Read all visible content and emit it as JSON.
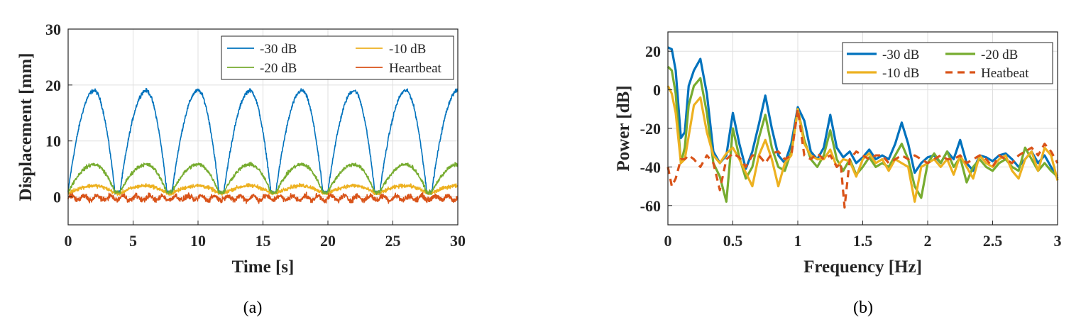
{
  "chart_data": [
    {
      "type": "line",
      "panel_label": "a",
      "xlabel": "Time [s]",
      "ylabel": "Displacement [mm]",
      "xlim": [
        0,
        30
      ],
      "ylim": [
        -5,
        30
      ],
      "xticks": [
        0,
        5,
        10,
        15,
        20,
        25,
        30
      ],
      "yticks": [
        0,
        10,
        20,
        30
      ],
      "legend_position": "top-right",
      "series": [
        {
          "name": "-30 dB",
          "color": "#0072BD",
          "kind": "breathing",
          "period_s": 4.0,
          "peak_mm": 19,
          "base_mm": 0.8,
          "noise_mm": 0.5
        },
        {
          "name": "-10 dB",
          "color": "#EDB120",
          "kind": "breathing",
          "period_s": 4.0,
          "peak_mm": 2.0,
          "base_mm": 0.6,
          "noise_mm": 0.5
        },
        {
          "name": "-20 dB",
          "color": "#77AC30",
          "kind": "breathing",
          "period_s": 4.0,
          "peak_mm": 5.8,
          "base_mm": 0.8,
          "noise_mm": 0.5
        },
        {
          "name": "Heartbeat",
          "color": "#D95319",
          "kind": "heartbeat",
          "period_s": 1.0,
          "peak_mm": 0.4,
          "base_mm": -0.2,
          "noise_mm": 0.6
        }
      ]
    },
    {
      "type": "line",
      "panel_label": "b",
      "xlabel": "Frequency [Hz]",
      "ylabel": "Power [dB]",
      "xlim": [
        0,
        3
      ],
      "ylim": [
        -70,
        30
      ],
      "xticks": [
        0,
        0.5,
        1,
        1.5,
        2,
        2.5,
        3
      ],
      "xtick_labels": [
        "0",
        "0.5",
        "1",
        "1.5",
        "2",
        "2.5",
        "3"
      ],
      "yticks": [
        -60,
        -40,
        -20,
        0,
        20
      ],
      "legend_position": "top-right",
      "series": [
        {
          "name": "-30 dB",
          "color": "#0072BD",
          "dash": "solid",
          "x": [
            0,
            0.03,
            0.06,
            0.1,
            0.13,
            0.16,
            0.2,
            0.25,
            0.3,
            0.35,
            0.4,
            0.45,
            0.5,
            0.55,
            0.6,
            0.65,
            0.7,
            0.75,
            0.8,
            0.85,
            0.9,
            0.95,
            1.0,
            1.05,
            1.1,
            1.15,
            1.2,
            1.25,
            1.3,
            1.35,
            1.4,
            1.45,
            1.5,
            1.55,
            1.6,
            1.65,
            1.7,
            1.75,
            1.8,
            1.85,
            1.9,
            1.95,
            2.0,
            2.05,
            2.1,
            2.15,
            2.2,
            2.25,
            2.3,
            2.35,
            2.4,
            2.45,
            2.5,
            2.55,
            2.6,
            2.65,
            2.7,
            2.75,
            2.8,
            2.85,
            2.9,
            2.95,
            3.0
          ],
          "y": [
            22,
            21,
            10,
            -25,
            -22,
            2,
            10,
            16,
            -2,
            -32,
            -38,
            -34,
            -12,
            -28,
            -41,
            -32,
            -18,
            -3,
            -20,
            -34,
            -38,
            -28,
            -9,
            -16,
            -32,
            -36,
            -30,
            -13,
            -30,
            -35,
            -32,
            -38,
            -35,
            -31,
            -36,
            -34,
            -36,
            -28,
            -17,
            -28,
            -43,
            -38,
            -35,
            -34,
            -38,
            -32,
            -36,
            -26,
            -38,
            -42,
            -34,
            -35,
            -37,
            -34,
            -33,
            -36,
            -40,
            -36,
            -32,
            -38,
            -34,
            -40,
            -46
          ]
        },
        {
          "name": "-20 dB",
          "color": "#77AC30",
          "dash": "solid",
          "x": [
            0,
            0.03,
            0.06,
            0.1,
            0.13,
            0.16,
            0.2,
            0.25,
            0.3,
            0.35,
            0.4,
            0.45,
            0.5,
            0.55,
            0.6,
            0.65,
            0.7,
            0.75,
            0.8,
            0.85,
            0.9,
            0.95,
            1.0,
            1.05,
            1.1,
            1.15,
            1.2,
            1.25,
            1.3,
            1.35,
            1.4,
            1.45,
            1.5,
            1.55,
            1.6,
            1.65,
            1.7,
            1.75,
            1.8,
            1.85,
            1.9,
            1.95,
            2.0,
            2.05,
            2.1,
            2.15,
            2.2,
            2.25,
            2.3,
            2.35,
            2.4,
            2.45,
            2.5,
            2.55,
            2.6,
            2.65,
            2.7,
            2.75,
            2.8,
            2.85,
            2.9,
            2.95,
            3.0
          ],
          "y": [
            12,
            10,
            -2,
            -38,
            -30,
            -8,
            2,
            6,
            -12,
            -38,
            -45,
            -58,
            -20,
            -35,
            -46,
            -40,
            -25,
            -13,
            -30,
            -40,
            -42,
            -32,
            -10,
            -26,
            -36,
            -40,
            -34,
            -21,
            -36,
            -42,
            -36,
            -44,
            -40,
            -35,
            -40,
            -38,
            -40,
            -34,
            -28,
            -36,
            -50,
            -56,
            -38,
            -33,
            -38,
            -32,
            -40,
            -35,
            -48,
            -40,
            -36,
            -40,
            -42,
            -38,
            -36,
            -40,
            -42,
            -30,
            -36,
            -42,
            -38,
            -42,
            -45
          ]
        },
        {
          "name": "-10 dB",
          "color": "#EDB120",
          "dash": "solid",
          "x": [
            0,
            0.03,
            0.06,
            0.1,
            0.13,
            0.16,
            0.2,
            0.25,
            0.3,
            0.35,
            0.4,
            0.45,
            0.5,
            0.55,
            0.6,
            0.65,
            0.7,
            0.75,
            0.8,
            0.85,
            0.9,
            0.95,
            1.0,
            1.05,
            1.1,
            1.15,
            1.2,
            1.25,
            1.3,
            1.35,
            1.4,
            1.45,
            1.5,
            1.55,
            1.6,
            1.65,
            1.7,
            1.75,
            1.8,
            1.85,
            1.9,
            1.95,
            2.0,
            2.05,
            2.1,
            2.15,
            2.2,
            2.25,
            2.3,
            2.35,
            2.4,
            2.45,
            2.5,
            2.55,
            2.6,
            2.65,
            2.7,
            2.75,
            2.8,
            2.85,
            2.9,
            2.95,
            3.0
          ],
          "y": [
            2,
            -2,
            -12,
            -38,
            -36,
            -24,
            -8,
            -4,
            -22,
            -34,
            -38,
            -33,
            -30,
            -36,
            -43,
            -50,
            -34,
            -26,
            -36,
            -50,
            -38,
            -34,
            -10,
            -28,
            -34,
            -36,
            -36,
            -31,
            -40,
            -36,
            -37,
            -45,
            -36,
            -33,
            -38,
            -36,
            -42,
            -36,
            -38,
            -40,
            -58,
            -40,
            -38,
            -36,
            -40,
            -36,
            -44,
            -34,
            -40,
            -46,
            -34,
            -38,
            -40,
            -36,
            -34,
            -42,
            -46,
            -36,
            -32,
            -42,
            -30,
            -34,
            -47
          ]
        },
        {
          "name": "Heatbeat",
          "color": "#D95319",
          "dash": "dashed",
          "x": [
            0,
            0.03,
            0.06,
            0.1,
            0.13,
            0.16,
            0.2,
            0.25,
            0.3,
            0.35,
            0.4,
            0.45,
            0.5,
            0.55,
            0.6,
            0.65,
            0.7,
            0.75,
            0.8,
            0.85,
            0.9,
            0.95,
            1.0,
            1.05,
            1.1,
            1.15,
            1.2,
            1.25,
            1.3,
            1.33,
            1.36,
            1.4,
            1.45,
            1.5,
            1.55,
            1.6,
            1.65,
            1.7,
            1.75,
            1.8,
            1.85,
            1.9,
            1.95,
            2.0,
            2.05,
            2.1,
            2.15,
            2.2,
            2.25,
            2.3,
            2.35,
            2.4,
            2.45,
            2.5,
            2.55,
            2.6,
            2.65,
            2.7,
            2.75,
            2.8,
            2.85,
            2.9,
            2.95,
            3.0
          ],
          "y": [
            -40,
            -50,
            -46,
            -36,
            -36,
            -34,
            -36,
            -40,
            -34,
            -38,
            -52,
            -36,
            -33,
            -35,
            -40,
            -34,
            -34,
            -38,
            -33,
            -32,
            -36,
            -34,
            -10,
            -34,
            -36,
            -33,
            -36,
            -34,
            -40,
            -38,
            -61,
            -36,
            -32,
            -34,
            -36,
            -34,
            -34,
            -38,
            -36,
            -34,
            -36,
            -34,
            -36,
            -38,
            -36,
            -34,
            -36,
            -36,
            -34,
            -38,
            -36,
            -34,
            -36,
            -40,
            -34,
            -36,
            -38,
            -34,
            -32,
            -30,
            -34,
            -28,
            -32,
            -38
          ]
        }
      ]
    }
  ],
  "captions": {
    "a": "(a)",
    "b": "(b)"
  }
}
